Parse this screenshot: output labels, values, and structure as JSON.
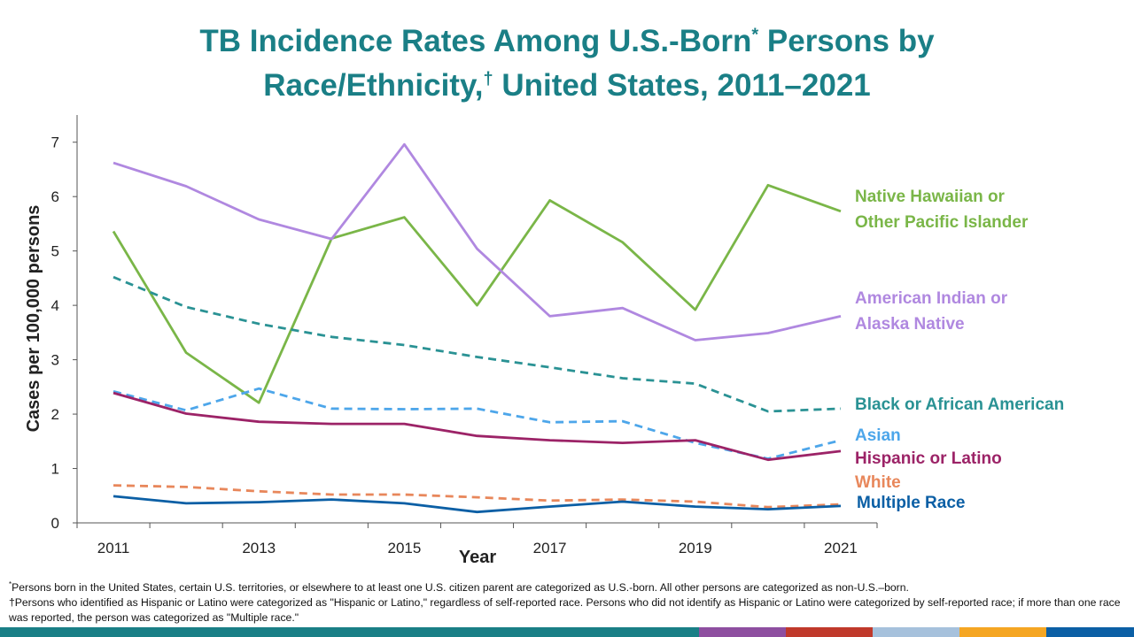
{
  "title": {
    "line1_pre": "TB Incidence Rates Among U.S.-Born",
    "mark_star": "*",
    "line1_post": " Persons by",
    "line2_pre": "Race/Ethnicity,",
    "mark_dagger": "†",
    "line2_post": " United States, 2011–2021"
  },
  "footnotes": {
    "note1_mark": "*",
    "note1": "Persons born in the United States, certain U.S. territories, or elsewhere to at least one U.S. citizen parent are categorized as U.S.-born. All other persons are categorized as non-U.S.–born.",
    "note2": "†Persons who identified as Hispanic or Latino were categorized as \"Hispanic or Latino,\" regardless of self-reported race. Persons who did not identify as Hispanic or Latino were categorized by self-reported race; if more than one race was reported, the person was categorized as \"Multiple race.\""
  },
  "colors": {
    "title": "#1a7f86",
    "bar": [
      "#1a7f86",
      "#8e4fa0",
      "#c0392b",
      "#a6c1dc",
      "#f5a623",
      "#0b5fa5"
    ]
  },
  "chart_data": {
    "type": "line",
    "xlabel": "Year",
    "ylabel": "Cases per 100,000 persons",
    "ylim": [
      0,
      7.5
    ],
    "yticks": [
      0,
      1,
      2,
      3,
      4,
      5,
      6,
      7
    ],
    "xlim": [
      2010.5,
      2021.5
    ],
    "xtick_labels": [
      2011,
      2013,
      2015,
      2017,
      2019,
      2021
    ],
    "x": [
      2011,
      2012,
      2013,
      2014,
      2015,
      2016,
      2017,
      2018,
      2019,
      2020,
      2021
    ],
    "legend": "right-of-plot",
    "series": [
      {
        "name": "Native Hawaiian or Other Pacific Islander",
        "label_lines": [
          "Native Hawaiian or",
          "Other Pacific Islander"
        ],
        "color": "#7ab648",
        "dash": "solid",
        "values": [
          5.36,
          3.13,
          2.21,
          5.23,
          5.62,
          4.0,
          5.93,
          5.16,
          3.92,
          6.21,
          5.73
        ]
      },
      {
        "name": "American Indian or Alaska Native",
        "label_lines": [
          "American Indian or",
          "Alaska Native"
        ],
        "color": "#b088e0",
        "dash": "solid",
        "values": [
          6.62,
          6.19,
          5.58,
          5.22,
          6.96,
          5.04,
          3.8,
          3.95,
          3.36,
          3.49,
          3.8
        ]
      },
      {
        "name": "Black or African American",
        "label_lines": [
          "Black or African American"
        ],
        "color": "#2a9294",
        "dash": "dashed",
        "values": [
          4.52,
          3.97,
          3.66,
          3.42,
          3.27,
          3.05,
          2.86,
          2.66,
          2.56,
          2.05,
          2.1
        ]
      },
      {
        "name": "Asian",
        "label_lines": [
          "Asian"
        ],
        "color": "#4da6ea",
        "dash": "dashed",
        "values": [
          2.42,
          2.07,
          2.47,
          2.1,
          2.09,
          2.1,
          1.85,
          1.87,
          1.47,
          1.18,
          1.52
        ]
      },
      {
        "name": "Hispanic or Latino",
        "label_lines": [
          "Hispanic or Latino"
        ],
        "color": "#9c2367",
        "dash": "solid",
        "values": [
          2.39,
          2.01,
          1.86,
          1.82,
          1.82,
          1.6,
          1.52,
          1.47,
          1.52,
          1.16,
          1.32
        ]
      },
      {
        "name": "White",
        "label_lines": [
          "White"
        ],
        "color": "#e8875b",
        "dash": "dashed",
        "values": [
          0.69,
          0.66,
          0.58,
          0.52,
          0.52,
          0.47,
          0.41,
          0.43,
          0.39,
          0.29,
          0.34
        ]
      },
      {
        "name": "Multiple Race",
        "label_lines": [
          "Multiple Race"
        ],
        "color": "#0b5fa5",
        "dash": "solid",
        "values": [
          0.49,
          0.36,
          0.38,
          0.43,
          0.36,
          0.2,
          0.3,
          0.39,
          0.3,
          0.25,
          0.31
        ]
      }
    ]
  }
}
